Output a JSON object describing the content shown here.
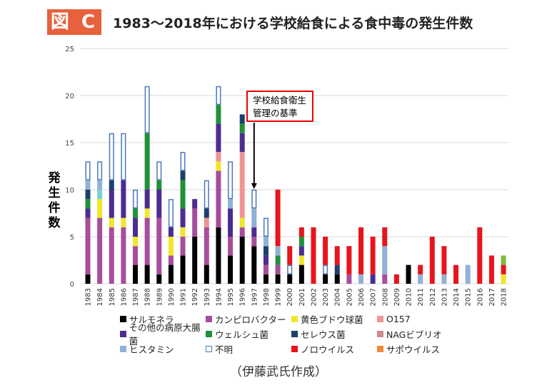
{
  "figure_label": "図 C",
  "chart_data": {
    "type": "bar",
    "stacked": true,
    "title": "1983〜2018年における学校給食による食中毒の発生件数",
    "ylabel": "発生件数",
    "xlabel": "",
    "ylim": [
      0,
      25
    ],
    "yticks": [
      0,
      5,
      10,
      15,
      20,
      25
    ],
    "grid": true,
    "legend_position": "bottom",
    "categories": [
      "1983",
      "1984",
      "1985",
      "1986",
      "1987",
      "1988",
      "1989",
      "1990",
      "1991",
      "1992",
      "1993",
      "1994",
      "1995",
      "1996",
      "1997",
      "1998",
      "1999",
      "2000",
      "2001",
      "2002",
      "2003",
      "2004",
      "2005",
      "2006",
      "2007",
      "2008",
      "2009",
      "2010",
      "2011",
      "2012",
      "2013",
      "2014",
      "2015",
      "2016",
      "2017",
      "2018"
    ],
    "series": [
      {
        "name": "サルモネラ",
        "color": "#000000",
        "values": [
          1,
          0,
          0,
          0,
          2,
          2,
          1,
          2,
          3,
          5,
          2,
          6,
          3,
          5,
          4,
          1,
          1,
          1,
          2,
          0,
          1,
          1,
          0,
          0,
          0,
          0,
          0,
          2,
          0,
          0,
          0,
          0,
          0,
          0,
          0,
          0
        ]
      },
      {
        "name": "カンピロバクター",
        "color": "#a64d9b",
        "values": [
          6,
          7,
          6,
          6,
          2,
          5,
          6,
          1,
          2,
          3,
          4,
          6,
          2,
          1,
          1,
          1,
          1,
          0,
          0,
          0,
          0,
          0,
          1,
          0,
          0,
          1,
          0,
          0,
          0,
          0,
          0,
          0,
          0,
          0,
          0,
          0
        ]
      },
      {
        "name": "黄色ブドウ球菌",
        "color": "#f0e62a",
        "values": [
          0,
          2,
          1,
          1,
          1,
          1,
          0,
          2,
          1,
          0,
          0,
          1,
          0,
          1,
          0,
          0,
          0,
          0,
          1,
          0,
          0,
          0,
          0,
          0,
          0,
          0,
          0,
          0,
          0,
          0,
          0,
          0,
          0,
          0,
          0,
          1
        ]
      },
      {
        "name": "O157",
        "color": "#f29494",
        "values": [
          0,
          0,
          0,
          0,
          0,
          0,
          0,
          0,
          0,
          0,
          1,
          1,
          0,
          7,
          0,
          0,
          0,
          0,
          0,
          0,
          0,
          0,
          0,
          0,
          0,
          0,
          0,
          0,
          0,
          0,
          0,
          0,
          0,
          0,
          0,
          0
        ]
      },
      {
        "name": "その他の病原大腸菌",
        "color": "#4b2c91",
        "values": [
          1,
          0,
          3,
          4,
          2,
          2,
          3,
          1,
          2,
          1,
          0,
          3,
          3,
          2,
          1,
          1,
          0,
          0,
          1,
          0,
          0,
          0,
          0,
          0,
          1,
          0,
          0,
          0,
          0,
          0,
          0,
          0,
          0,
          0,
          0,
          0
        ]
      },
      {
        "name": "ウェルシュ菌",
        "color": "#1f9138",
        "values": [
          1,
          0,
          0,
          0,
          1,
          6,
          1,
          0,
          3,
          0,
          0,
          2,
          0,
          1,
          0,
          0,
          1,
          0,
          1,
          0,
          0,
          0,
          0,
          0,
          0,
          0,
          0,
          0,
          0,
          0,
          0,
          0,
          0,
          0,
          0,
          0
        ]
      },
      {
        "name": "セレウス菌",
        "color": "#1d3f6b",
        "values": [
          1,
          0,
          1,
          0,
          0,
          0,
          0,
          0,
          1,
          0,
          1,
          0,
          0,
          1,
          0,
          1,
          0,
          0,
          0,
          0,
          0,
          1,
          0,
          0,
          0,
          0,
          0,
          0,
          0,
          0,
          0,
          0,
          0,
          0,
          0,
          0
        ]
      },
      {
        "name": "NAGビブリオ",
        "color": "#cf8a8a",
        "values": [
          0,
          0,
          0,
          0,
          0,
          0,
          0,
          0,
          0,
          0,
          0,
          0,
          0,
          0,
          0,
          0,
          0,
          0,
          0,
          0,
          0,
          0,
          0,
          0,
          0,
          0,
          0,
          0,
          0,
          0,
          0,
          0,
          0,
          0,
          0,
          0
        ]
      },
      {
        "name": "",
        "color": "#7ccfd6",
        "values": [
          0,
          1,
          0,
          0,
          0,
          0,
          0,
          0,
          0,
          0,
          0,
          0,
          0,
          0,
          0,
          0,
          0,
          0,
          0,
          0,
          0,
          0,
          0,
          0,
          0,
          0,
          0,
          0,
          0,
          0,
          0,
          0,
          0,
          0,
          0,
          0
        ]
      },
      {
        "name": "ヒスタミン",
        "color": "#8fb1d6",
        "values": [
          1,
          1,
          0,
          0,
          0,
          0,
          0,
          0,
          0,
          0,
          0,
          0,
          1,
          0,
          2,
          1,
          1,
          0,
          0,
          0,
          0,
          0,
          0,
          1,
          0,
          3,
          0,
          0,
          1,
          0,
          1,
          0,
          2,
          0,
          0,
          0
        ]
      },
      {
        "name": "不明",
        "color": "#ffffff",
        "border": "#4a78b8",
        "values": [
          2,
          2,
          5,
          5,
          2,
          5,
          2,
          3,
          2,
          0,
          3,
          2,
          4,
          0,
          2,
          2,
          0,
          1,
          0,
          0,
          1,
          0,
          0,
          0,
          0,
          0,
          0,
          0,
          0,
          0,
          0,
          0,
          0,
          0,
          0,
          0
        ]
      },
      {
        "name": "ノロウイルス",
        "color": "#e8141c",
        "values": [
          0,
          0,
          0,
          0,
          0,
          0,
          0,
          0,
          0,
          0,
          0,
          0,
          0,
          0,
          0,
          0,
          6,
          2,
          1,
          6,
          3,
          2,
          3,
          5,
          4,
          2,
          1,
          0,
          1,
          5,
          3,
          2,
          0,
          6,
          3,
          1
        ]
      },
      {
        "name": "サポウイルス",
        "color": "#ef8a3a",
        "values": [
          0,
          0,
          0,
          0,
          0,
          0,
          0,
          0,
          0,
          0,
          0,
          0,
          0,
          0,
          0,
          0,
          0,
          0,
          0,
          0,
          0,
          0,
          0,
          0,
          0,
          0,
          0,
          0,
          0,
          0,
          0,
          0,
          0,
          0,
          0,
          0
        ]
      },
      {
        "name": "",
        "color": "#7dbb3a",
        "values": [
          0,
          0,
          0,
          0,
          0,
          0,
          0,
          0,
          0,
          0,
          0,
          0,
          0,
          0,
          0,
          0,
          0,
          0,
          0,
          0,
          0,
          0,
          0,
          0,
          0,
          0,
          0,
          0,
          0,
          0,
          0,
          0,
          0,
          0,
          0,
          1
        ]
      }
    ],
    "annotation": {
      "text_line1": "学校給食衛生",
      "text_line2": "管理の基準",
      "year": "1997"
    },
    "legend_order": [
      "サルモネラ",
      "カンピロバクター",
      "黄色ブドウ球菌",
      "O157",
      "その他の病原大腸菌",
      "ウェルシュ菌",
      "セレウス菌",
      "NAGビブリオ",
      "ヒスタミン",
      "不明",
      "ノロウイルス",
      "サポウイルス"
    ]
  },
  "source": "（伊藤武氏作成）"
}
